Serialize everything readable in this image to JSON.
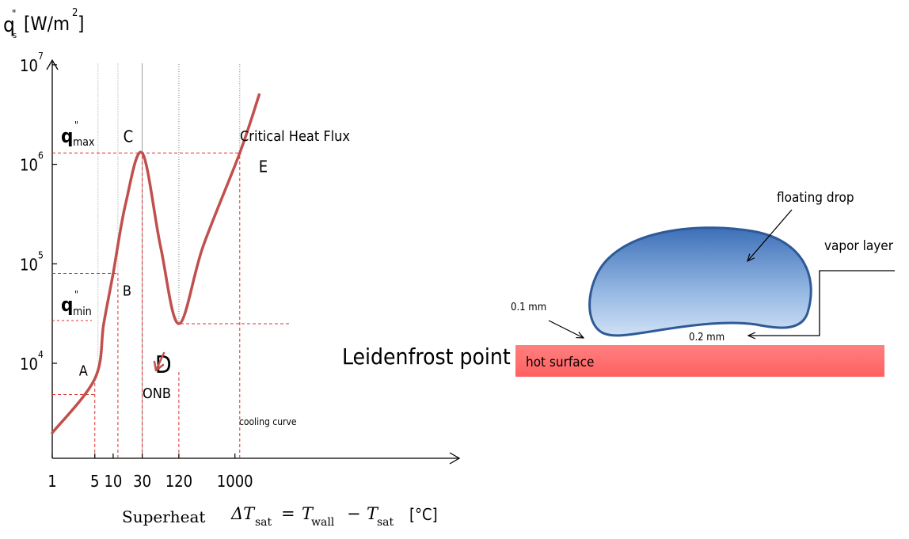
{
  "chart_data": {
    "type": "line",
    "x_scale": "log",
    "y_scale": "log",
    "ylabel": {
      "q": "q",
      "sub": "s",
      "prime": "\"",
      "unit": "[W/m",
      "sup": "2",
      "close": "]"
    },
    "xlabel": {
      "word": "Superheat",
      "lhs": "ΔT",
      "lhs_sub": "sat",
      "eq": "=",
      "t1": "T",
      "t1_sub": "wall",
      "minus": "−",
      "t2": "T",
      "t2_sub": "sat",
      "unit": "[°C]"
    },
    "x_ticks": [
      "1",
      "5",
      "10",
      "30",
      "120",
      "1000"
    ],
    "y_ticks": [
      {
        "base": "10",
        "exp": "4"
      },
      {
        "base": "10",
        "exp": "5"
      },
      {
        "base": "10",
        "exp": "6"
      },
      {
        "base": "10",
        "exp": "7"
      }
    ],
    "q_labels": {
      "max": {
        "q": "q",
        "prime": "\"",
        "sub": "max"
      },
      "min": {
        "q": "q",
        "prime": "\"",
        "sub": "min"
      }
    },
    "series": [
      {
        "color": "#c0504d",
        "points": [
          [
            1,
            2000
          ],
          [
            5,
            7000
          ],
          [
            7,
            25000
          ],
          [
            10,
            80000
          ],
          [
            16,
            400000
          ],
          [
            30,
            1300000
          ],
          [
            60,
            150000
          ],
          [
            120,
            25000
          ],
          [
            300,
            150000
          ],
          [
            1200,
            1300000
          ],
          [
            2500,
            5000000
          ]
        ]
      }
    ],
    "points": [
      {
        "label": "A",
        "x": 5,
        "y": 7000
      },
      {
        "label": "B",
        "x": 10,
        "y": 80000
      },
      {
        "label": "C",
        "x": 30,
        "y": 1300000
      },
      {
        "label": "D",
        "x": 120,
        "y": 25000
      },
      {
        "label": "E",
        "x": 1200,
        "y": 1300000
      }
    ],
    "annotations": {
      "chf": "Critical Heat Flux",
      "leidenfrost": "Leidenfrost point",
      "onb": "ONB",
      "cooling": "cooling curve"
    }
  },
  "diagram": {
    "floating_drop": "floating drop",
    "vapor_layer": "vapor layer",
    "gap_1": "0.1 mm",
    "gap_2": "0.2 mm",
    "hot_surface": "hot surface",
    "drop_color": "#4a7fc1",
    "surface_color": "#ff6b6b"
  }
}
